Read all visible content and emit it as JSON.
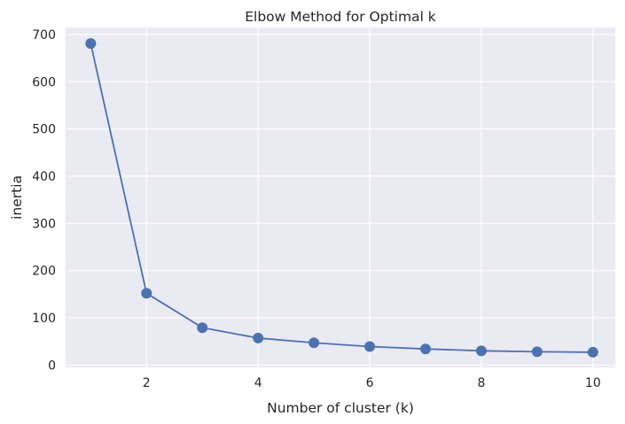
{
  "chart_data": {
    "type": "line",
    "title": "Elbow Method for Optimal k",
    "xlabel": "Number of cluster (k)",
    "ylabel": "inertia",
    "xlim": [
      0.55,
      10.4
    ],
    "ylim": [
      -5,
      715
    ],
    "xticks": [
      2,
      4,
      6,
      8,
      10
    ],
    "yticks": [
      0,
      100,
      200,
      300,
      400,
      500,
      600,
      700
    ],
    "grid": true,
    "background_color": "#eaeaf2",
    "series": [
      {
        "color": "#4c72b0",
        "marker": "circle",
        "x": [
          1,
          2,
          3,
          4,
          5,
          6,
          7,
          8,
          9,
          10
        ],
        "y": [
          681,
          152,
          79,
          57,
          47,
          39,
          34,
          30,
          28,
          27
        ]
      }
    ]
  }
}
